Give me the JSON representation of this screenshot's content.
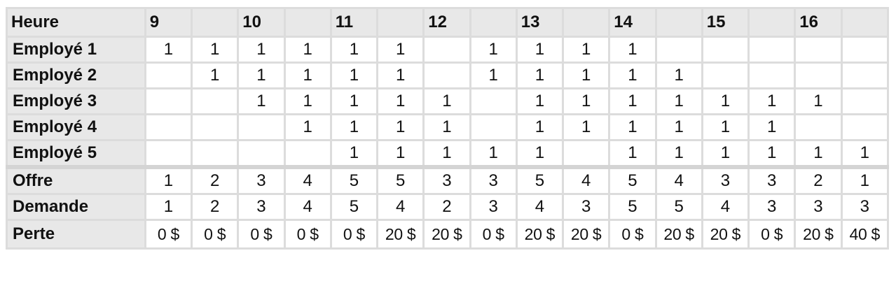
{
  "header": {
    "label": "Heure",
    "hours": [
      "9",
      "",
      "10",
      "",
      "11",
      "",
      "12",
      "",
      "13",
      "",
      "14",
      "",
      "15",
      "",
      "16",
      ""
    ]
  },
  "employees": [
    {
      "name": "Employé 1",
      "cells": [
        "1",
        "1",
        "1",
        "1",
        "1",
        "1",
        "",
        "1",
        "1",
        "1",
        "1",
        "",
        "",
        "",
        "",
        ""
      ]
    },
    {
      "name": "Employé 2",
      "cells": [
        "",
        "1",
        "1",
        "1",
        "1",
        "1",
        "",
        "1",
        "1",
        "1",
        "1",
        "1",
        "",
        "",
        "",
        ""
      ]
    },
    {
      "name": "Employé 3",
      "cells": [
        "",
        "",
        "1",
        "1",
        "1",
        "1",
        "1",
        "",
        "1",
        "1",
        "1",
        "1",
        "1",
        "1",
        "1",
        ""
      ]
    },
    {
      "name": "Employé 4",
      "cells": [
        "",
        "",
        "",
        "1",
        "1",
        "1",
        "1",
        "",
        "1",
        "1",
        "1",
        "1",
        "1",
        "1",
        "",
        ""
      ]
    },
    {
      "name": "Employé 5",
      "cells": [
        "",
        "",
        "",
        "",
        "1",
        "1",
        "1",
        "1",
        "1",
        "",
        "1",
        "1",
        "1",
        "1",
        "1",
        "1"
      ]
    }
  ],
  "summary": [
    {
      "name": "Offre",
      "cells": [
        "1",
        "2",
        "3",
        "4",
        "5",
        "5",
        "3",
        "3",
        "5",
        "4",
        "5",
        "4",
        "3",
        "3",
        "2",
        "1"
      ]
    },
    {
      "name": "Demande",
      "cells": [
        "1",
        "2",
        "3",
        "4",
        "5",
        "4",
        "2",
        "3",
        "4",
        "3",
        "5",
        "5",
        "4",
        "3",
        "3",
        "3"
      ]
    },
    {
      "name": "Perte",
      "cells": [
        "0 $",
        "0 $",
        "0 $",
        "0 $",
        "0 $",
        "20 $",
        "20 $",
        "0 $",
        "20 $",
        "20 $",
        "0 $",
        "20 $",
        "20 $",
        "0 $",
        "20 $",
        "40 $"
      ]
    }
  ]
}
